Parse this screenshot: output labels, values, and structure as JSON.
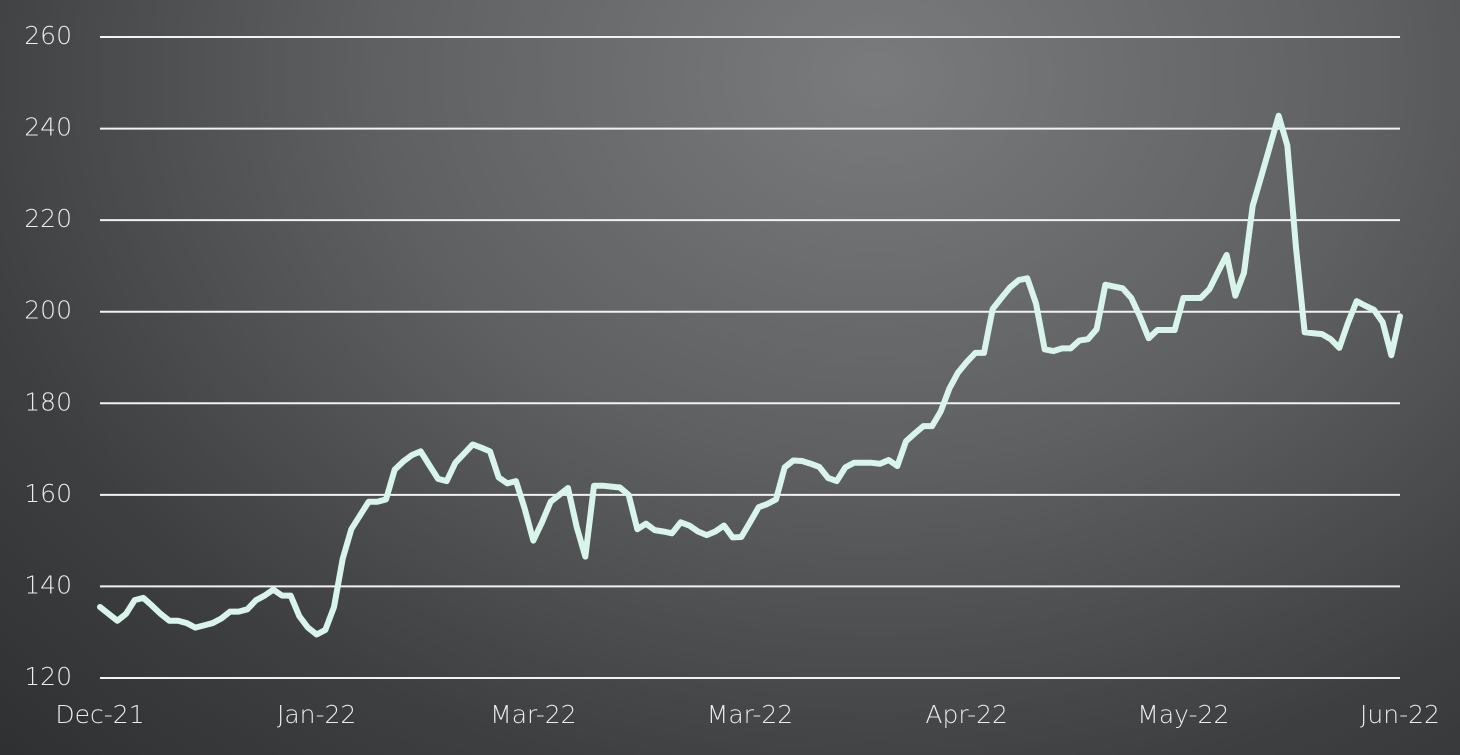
{
  "chart_data": {
    "type": "line",
    "categories": [
      "Dec-21",
      null,
      null,
      null,
      null,
      null,
      null,
      null,
      null,
      null,
      null,
      null,
      null,
      null,
      null,
      null,
      null,
      null,
      null,
      null,
      null,
      null,
      null,
      null,
      null,
      "Jan-22",
      null,
      null,
      null,
      null,
      null,
      null,
      null,
      null,
      null,
      null,
      null,
      null,
      null,
      null,
      null,
      null,
      null,
      null,
      null,
      null,
      null,
      null,
      null,
      null,
      "Mar-22",
      null,
      null,
      null,
      null,
      null,
      null,
      null,
      null,
      null,
      null,
      null,
      null,
      null,
      null,
      null,
      null,
      null,
      null,
      null,
      null,
      null,
      null,
      null,
      null,
      "Mar-22",
      null,
      null,
      null,
      null,
      null,
      null,
      null,
      null,
      null,
      null,
      null,
      null,
      null,
      null,
      null,
      null,
      null,
      null,
      null,
      null,
      null,
      null,
      null,
      null,
      "Apr-22",
      null,
      null,
      null,
      null,
      null,
      null,
      null,
      null,
      null,
      null,
      null,
      null,
      null,
      null,
      null,
      null,
      null,
      null,
      null,
      null,
      null,
      null,
      null,
      null,
      "May-22",
      null,
      null,
      null,
      null,
      null,
      null,
      null,
      null,
      null,
      null,
      null,
      null,
      null,
      null,
      null,
      null,
      null,
      null,
      null,
      null,
      null,
      null,
      null,
      null,
      "Jun-22"
    ],
    "values": [
      135.5,
      134,
      132.5,
      134,
      137,
      137.5,
      135.8,
      134,
      132.5,
      132.5,
      132,
      131,
      131.5,
      132,
      133,
      134.5,
      134.5,
      135,
      137,
      138,
      139.3,
      138,
      138,
      133.5,
      131,
      129.5,
      130.5,
      135.5,
      146,
      152.5,
      155.5,
      158.5,
      158.5,
      159,
      165.5,
      167.3,
      168.7,
      169.5,
      166.5,
      163.5,
      163,
      167,
      169,
      171,
      170.3,
      169.5,
      163.8,
      162.5,
      163,
      157,
      150,
      154,
      158.5,
      160,
      161.5,
      153,
      146.5,
      162,
      162,
      161.8,
      161.6,
      160,
      152.5,
      153.7,
      152.3,
      152,
      151.6,
      154,
      153.3,
      152,
      151.2,
      152,
      153.3,
      150.7,
      150.8,
      154,
      157.3,
      158,
      159,
      166,
      167.5,
      167.4,
      166.8,
      166.1,
      163.7,
      163,
      166,
      167,
      167,
      167,
      166.8,
      167.6,
      166.3,
      171.7,
      173.4,
      175,
      175,
      178.2,
      183.2,
      186.7,
      189,
      191,
      191,
      200.6,
      203,
      205.3,
      206.9,
      207.3,
      201.8,
      191.8,
      191.4,
      192,
      192,
      193.7,
      194,
      196.2,
      205.9,
      205.5,
      205.1,
      203,
      198.9,
      194.2,
      196,
      196,
      196,
      203,
      203,
      203,
      204.9,
      208.7,
      212.4,
      203.5,
      208.5,
      223.1,
      229.6,
      236.2,
      242.8,
      236.3,
      214,
      195.5,
      195.3,
      195.1,
      194,
      192.1,
      197.6,
      202.3,
      201.3,
      200.4,
      197.7,
      190.5,
      199
    ],
    "color": "#d9f4ea",
    "ylim": [
      120,
      260
    ],
    "yticks": [
      120,
      140,
      160,
      180,
      200,
      220,
      240,
      260
    ],
    "grid": true
  }
}
